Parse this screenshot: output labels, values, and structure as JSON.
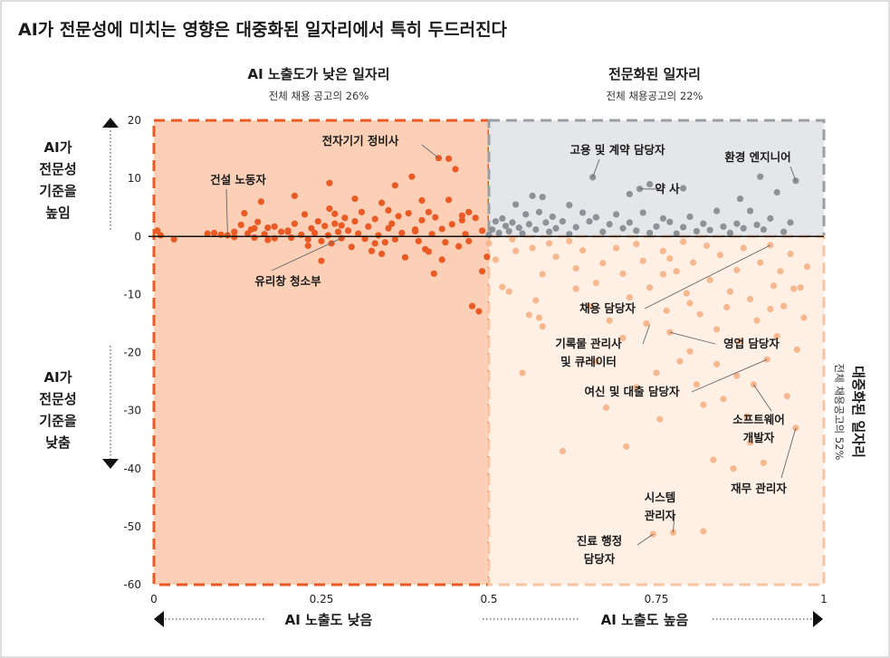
{
  "title": "AI가 전문성에 미치는 영향은 대중화된 일자리에서 특히 두드러진다",
  "quadrants": {
    "low_exposure": {
      "title": "AI 노출도가 낮은 일자리",
      "subtitle": ""
    },
    "specialized": {
      "title": "전문화된 일자리",
      "subtitle": "전체 채용공고의 22%"
    },
    "popularized": {
      "title": "대중화된 일자리",
      "subtitle": "전체 채용공고의 52%"
    }
  },
  "low_exposure_subtitle": "전체 채용 공고의 26%",
  "y_side_labels": {
    "raise": [
      "AI가",
      "전문성",
      "기준을",
      "높임"
    ],
    "lower": [
      "AI가",
      "전문성",
      "기준을",
      "낮춤"
    ]
  },
  "x_axis_labels": {
    "low": "AI 노출도 낮음",
    "high": "AI 노출도 높음"
  },
  "colors": {
    "low_fill": "#fbd0b6",
    "low_point": "#ea5a24",
    "low_border": "#ea5a24",
    "spec_fill": "#e4e6e9",
    "spec_point": "#8e9297",
    "spec_border": "#9a9ea3",
    "pop_fill": "#fff0e6",
    "pop_point": "#f7b88f",
    "pop_border": "#f7c3a2",
    "zero_line": "#111111"
  },
  "annotations": [
    {
      "label": [
        "전자기기 정비사"
      ],
      "point": [
        0.425,
        13.5
      ]
    },
    {
      "label": [
        "건설 노동자"
      ],
      "point": [
        0.11,
        0.2
      ]
    },
    {
      "label": [
        "유리창 청소부"
      ],
      "point": [
        0.28,
        -0.3
      ]
    },
    {
      "label": [
        "고용 및 계약 담당자"
      ],
      "point": [
        0.655,
        10.2
      ]
    },
    {
      "label": [
        "약 사"
      ],
      "point": [
        0.725,
        8.2
      ]
    },
    {
      "label": [
        "환경 엔지니어"
      ],
      "point": [
        0.958,
        9.6
      ]
    },
    {
      "label": [
        "채용 담당자"
      ],
      "point": [
        0.92,
        -1.5
      ]
    },
    {
      "label": [
        "기록물 관리사",
        "및 큐레이터"
      ],
      "point": [
        0.74,
        -15.2
      ]
    },
    {
      "label": [
        "영업 담당자"
      ],
      "point": [
        0.77,
        -16.5
      ]
    },
    {
      "label": [
        "여신 및 대출 담당자"
      ],
      "point": [
        0.915,
        -21.2
      ]
    },
    {
      "label": [
        "소프트웨어",
        "개발자"
      ],
      "point": [
        0.895,
        -25.5
      ]
    },
    {
      "label": [
        "재무 관리자"
      ],
      "point": [
        0.958,
        -33
      ]
    },
    {
      "label": [
        "시스템",
        "관리자"
      ],
      "point": [
        0.775,
        -51
      ]
    },
    {
      "label": [
        "진료 행정",
        "담당자"
      ],
      "point": [
        0.745,
        -51.3
      ]
    }
  ],
  "chart_data": {
    "type": "scatter",
    "title": "AI가 전문성에 미치는 영향은 대중화된 일자리에서 특히 두드러진다",
    "xlabel": "",
    "ylabel": "",
    "xlim": [
      0,
      1
    ],
    "ylim": [
      -60,
      20
    ],
    "x_ticks": [
      "0",
      "0.25",
      "0.5",
      "0.75",
      "1"
    ],
    "y_ticks": [
      "20",
      "10",
      "0",
      "-10",
      "-20",
      "-30",
      "-40",
      "-50",
      "-60"
    ],
    "grid": false,
    "series": [
      {
        "points": [
          [
            0.005,
            1.0
          ],
          [
            0.01,
            0.2
          ],
          [
            0.03,
            -0.5
          ],
          [
            0.08,
            0.5
          ],
          [
            0.09,
            0.6
          ],
          [
            0.1,
            0.3
          ],
          [
            0.11,
            0.2
          ],
          [
            0.12,
            0.8
          ],
          [
            0.13,
            2.0
          ],
          [
            0.135,
            4.0
          ],
          [
            0.14,
            0.5
          ],
          [
            0.145,
            1.2
          ],
          [
            0.15,
            -0.2
          ],
          [
            0.155,
            2.5
          ],
          [
            0.16,
            6.0
          ],
          [
            0.165,
            0.4
          ],
          [
            0.17,
            1.5
          ],
          [
            0.18,
            -0.3
          ],
          [
            0.19,
            0.8
          ],
          [
            0.2,
            1.0
          ],
          [
            0.205,
            -0.2
          ],
          [
            0.21,
            2.2
          ],
          [
            0.22,
            0.3
          ],
          [
            0.225,
            3.8
          ],
          [
            0.23,
            -0.5
          ],
          [
            0.235,
            1.4
          ],
          [
            0.24,
            0.6
          ],
          [
            0.245,
            2.6
          ],
          [
            0.25,
            -0.8
          ],
          [
            0.255,
            1.8
          ],
          [
            0.26,
            0.2
          ],
          [
            0.262,
            4.8
          ],
          [
            0.265,
            -1.2
          ],
          [
            0.27,
            2.2
          ],
          [
            0.275,
            0.8
          ],
          [
            0.28,
            -0.3
          ],
          [
            0.285,
            3.2
          ],
          [
            0.29,
            1.0
          ],
          [
            0.295,
            -1.8
          ],
          [
            0.3,
            2.6
          ],
          [
            0.305,
            0.5
          ],
          [
            0.31,
            4.2
          ],
          [
            0.315,
            -0.4
          ],
          [
            0.32,
            1.7
          ],
          [
            0.325,
            -2.5
          ],
          [
            0.33,
            3.0
          ],
          [
            0.335,
            0.2
          ],
          [
            0.34,
            5.8
          ],
          [
            0.345,
            -1.0
          ],
          [
            0.35,
            1.4
          ],
          [
            0.355,
            2.2
          ],
          [
            0.36,
            -0.5
          ],
          [
            0.365,
            3.5
          ],
          [
            0.37,
            0.6
          ],
          [
            0.375,
            -3.6
          ],
          [
            0.38,
            4.0
          ],
          [
            0.385,
            10.3
          ],
          [
            0.39,
            1.2
          ],
          [
            0.395,
            -0.8
          ],
          [
            0.4,
            2.8
          ],
          [
            0.405,
            -2.2
          ],
          [
            0.41,
            4.2
          ],
          [
            0.415,
            0.4
          ],
          [
            0.418,
            -6.4
          ],
          [
            0.42,
            3.3
          ],
          [
            0.425,
            13.5
          ],
          [
            0.43,
            1.3
          ],
          [
            0.435,
            -1.0
          ],
          [
            0.44,
            6.3
          ],
          [
            0.445,
            2.1
          ],
          [
            0.45,
            11.6
          ],
          [
            0.455,
            -1.7
          ],
          [
            0.46,
            3.6
          ],
          [
            0.465,
            0.4
          ],
          [
            0.47,
            4.2
          ],
          [
            0.475,
            -12.0
          ],
          [
            0.48,
            3.2
          ],
          [
            0.485,
            -12.9
          ],
          [
            0.49,
            -6.0
          ],
          [
            0.497,
            -3.5
          ],
          [
            0.262,
            9.2
          ],
          [
            0.21,
            7.0
          ],
          [
            0.44,
            13.4
          ],
          [
            0.36,
            8.8
          ],
          [
            0.4,
            6.2
          ],
          [
            0.3,
            6.5
          ],
          [
            0.2,
            0.8
          ],
          [
            0.28,
            1.9
          ],
          [
            0.33,
            -1.2
          ],
          [
            0.25,
            -4.2
          ],
          [
            0.34,
            -3.0
          ],
          [
            0.43,
            -4.0
          ],
          [
            0.47,
            -0.8
          ],
          [
            0.39,
            0.9
          ],
          [
            0.18,
            1.7
          ],
          [
            0.23,
            -1.6
          ],
          [
            0.27,
            3.9
          ],
          [
            0.35,
            4.5
          ],
          [
            0.41,
            -2.6
          ],
          [
            0.46,
            2.8
          ],
          [
            0.49,
            1.0
          ],
          [
            0.12,
            -0.1
          ],
          [
            0.15,
            1.4
          ],
          [
            0.17,
            -0.6
          ]
        ]
      },
      {
        "points": [
          [
            0.5,
            0.3
          ],
          [
            0.505,
            1.2
          ],
          [
            0.51,
            2.6
          ],
          [
            0.515,
            0.6
          ],
          [
            0.52,
            3.1
          ],
          [
            0.525,
            1.8
          ],
          [
            0.53,
            0.9
          ],
          [
            0.535,
            2.4
          ],
          [
            0.54,
            5.5
          ],
          [
            0.545,
            1.5
          ],
          [
            0.55,
            0.5
          ],
          [
            0.555,
            3.8
          ],
          [
            0.56,
            2.1
          ],
          [
            0.565,
            7.0
          ],
          [
            0.57,
            1.2
          ],
          [
            0.575,
            4.2
          ],
          [
            0.58,
            6.8
          ],
          [
            0.585,
            2.4
          ],
          [
            0.59,
            0.8
          ],
          [
            0.595,
            3.4
          ],
          [
            0.6,
            1.4
          ],
          [
            0.61,
            2.6
          ],
          [
            0.62,
            0.4
          ],
          [
            0.63,
            1.6
          ],
          [
            0.64,
            4.1
          ],
          [
            0.65,
            2.6
          ],
          [
            0.655,
            10.2
          ],
          [
            0.66,
            3.3
          ],
          [
            0.67,
            0.8
          ],
          [
            0.68,
            2.1
          ],
          [
            0.69,
            3.8
          ],
          [
            0.7,
            1.4
          ],
          [
            0.71,
            2.4
          ],
          [
            0.72,
            1.0
          ],
          [
            0.725,
            8.2
          ],
          [
            0.73,
            4.1
          ],
          [
            0.74,
            0.6
          ],
          [
            0.75,
            1.7
          ],
          [
            0.76,
            3.1
          ],
          [
            0.77,
            2.5
          ],
          [
            0.78,
            0.5
          ],
          [
            0.79,
            1.6
          ],
          [
            0.8,
            3.4
          ],
          [
            0.81,
            0.9
          ],
          [
            0.82,
            2.2
          ],
          [
            0.83,
            1.1
          ],
          [
            0.84,
            4.4
          ],
          [
            0.85,
            1.7
          ],
          [
            0.86,
            0.6
          ],
          [
            0.87,
            2.2
          ],
          [
            0.875,
            6.5
          ],
          [
            0.88,
            1.4
          ],
          [
            0.89,
            4.4
          ],
          [
            0.9,
            2.0
          ],
          [
            0.905,
            10.3
          ],
          [
            0.91,
            1.2
          ],
          [
            0.92,
            3.1
          ],
          [
            0.93,
            7.6
          ],
          [
            0.94,
            0.8
          ],
          [
            0.95,
            2.4
          ],
          [
            0.958,
            9.6
          ],
          [
            0.62,
            5.4
          ],
          [
            0.71,
            7.3
          ],
          [
            0.79,
            8.3
          ],
          [
            0.74,
            9.0
          ]
        ]
      },
      {
        "points": [
          [
            0.5,
            -1.2
          ],
          [
            0.51,
            -4.0
          ],
          [
            0.52,
            -8.7
          ],
          [
            0.53,
            -9.5
          ],
          [
            0.535,
            -0.5
          ],
          [
            0.54,
            -2.5
          ],
          [
            0.55,
            -23.5
          ],
          [
            0.56,
            -13.5
          ],
          [
            0.565,
            -2.0
          ],
          [
            0.57,
            -11.0
          ],
          [
            0.575,
            -14.0
          ],
          [
            0.58,
            -6.5
          ],
          [
            0.59,
            -1.2
          ],
          [
            0.6,
            -3.5
          ],
          [
            0.61,
            -37.0
          ],
          [
            0.62,
            -0.8
          ],
          [
            0.63,
            -5.5
          ],
          [
            0.64,
            -2.4
          ],
          [
            0.65,
            -12.0
          ],
          [
            0.66,
            -8.0
          ],
          [
            0.67,
            -4.6
          ],
          [
            0.675,
            -29.5
          ],
          [
            0.68,
            -14.5
          ],
          [
            0.69,
            -2.0
          ],
          [
            0.7,
            -6.4
          ],
          [
            0.705,
            -36.2
          ],
          [
            0.71,
            -10.5
          ],
          [
            0.72,
            -1.3
          ],
          [
            0.73,
            -4.2
          ],
          [
            0.735,
            -15.0
          ],
          [
            0.74,
            -8.8
          ],
          [
            0.745,
            -51.3
          ],
          [
            0.75,
            -23.5
          ],
          [
            0.755,
            -31.5
          ],
          [
            0.76,
            -2.5
          ],
          [
            0.765,
            -12.8
          ],
          [
            0.77,
            -16.5
          ],
          [
            0.775,
            -51.0
          ],
          [
            0.78,
            -6.0
          ],
          [
            0.785,
            -21.5
          ],
          [
            0.79,
            -0.9
          ],
          [
            0.795,
            -9.8
          ],
          [
            0.8,
            -19.8
          ],
          [
            0.805,
            -4.5
          ],
          [
            0.81,
            -25.5
          ],
          [
            0.815,
            -13.4
          ],
          [
            0.82,
            -50.8
          ],
          [
            0.825,
            -1.6
          ],
          [
            0.83,
            -7.5
          ],
          [
            0.835,
            -38.5
          ],
          [
            0.84,
            -22.0
          ],
          [
            0.845,
            -3.2
          ],
          [
            0.85,
            -28.0
          ],
          [
            0.855,
            -12.2
          ],
          [
            0.86,
            -9.5
          ],
          [
            0.865,
            -40.0
          ],
          [
            0.87,
            -5.8
          ],
          [
            0.875,
            -18.0
          ],
          [
            0.88,
            -2.0
          ],
          [
            0.885,
            -31.0
          ],
          [
            0.89,
            -10.8
          ],
          [
            0.895,
            -25.5
          ],
          [
            0.9,
            -14.5
          ],
          [
            0.905,
            -4.5
          ],
          [
            0.91,
            -39.0
          ],
          [
            0.915,
            -21.2
          ],
          [
            0.92,
            -1.5
          ],
          [
            0.925,
            -8.5
          ],
          [
            0.93,
            -17.2
          ],
          [
            0.935,
            -6.0
          ],
          [
            0.94,
            -12.0
          ],
          [
            0.945,
            -27.5
          ],
          [
            0.95,
            -3.0
          ],
          [
            0.955,
            -9.0
          ],
          [
            0.958,
            -33.0
          ],
          [
            0.96,
            -19.5
          ],
          [
            0.965,
            -8.8
          ],
          [
            0.97,
            -14.0
          ],
          [
            0.975,
            -5.2
          ],
          [
            0.66,
            -21.5
          ],
          [
            0.7,
            -17.5
          ],
          [
            0.72,
            -26.0
          ],
          [
            0.76,
            -6.5
          ],
          [
            0.8,
            -11.5
          ],
          [
            0.84,
            -16.0
          ],
          [
            0.87,
            -24.0
          ],
          [
            0.63,
            -9.0
          ],
          [
            0.58,
            -15.5
          ],
          [
            0.92,
            -12.5
          ],
          [
            0.89,
            -35.5
          ],
          [
            0.82,
            -29.0
          ],
          [
            0.77,
            -3.8
          ]
        ]
      }
    ]
  }
}
